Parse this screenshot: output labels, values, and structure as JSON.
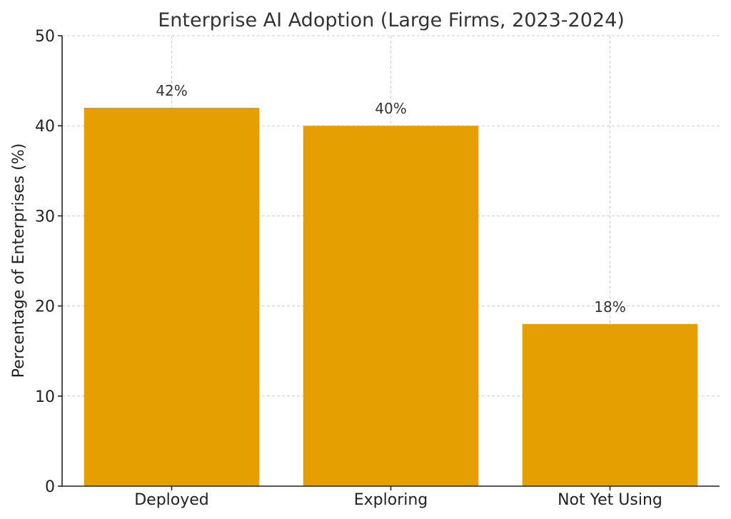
{
  "chart_data": {
    "type": "bar",
    "title": "Enterprise AI Adoption (Large Firms, 2023-2024)",
    "xlabel": "",
    "ylabel": "Percentage of Enterprises (%)",
    "categories": [
      "Deployed",
      "Exploring",
      "Not Yet Using"
    ],
    "values": [
      42,
      40,
      18
    ],
    "data_labels": [
      "42%",
      "40%",
      "18%"
    ],
    "ylim": [
      0,
      50
    ],
    "yticks": [
      0,
      10,
      20,
      30,
      40,
      50
    ],
    "grid": true,
    "bar_color": "#E69F00"
  }
}
